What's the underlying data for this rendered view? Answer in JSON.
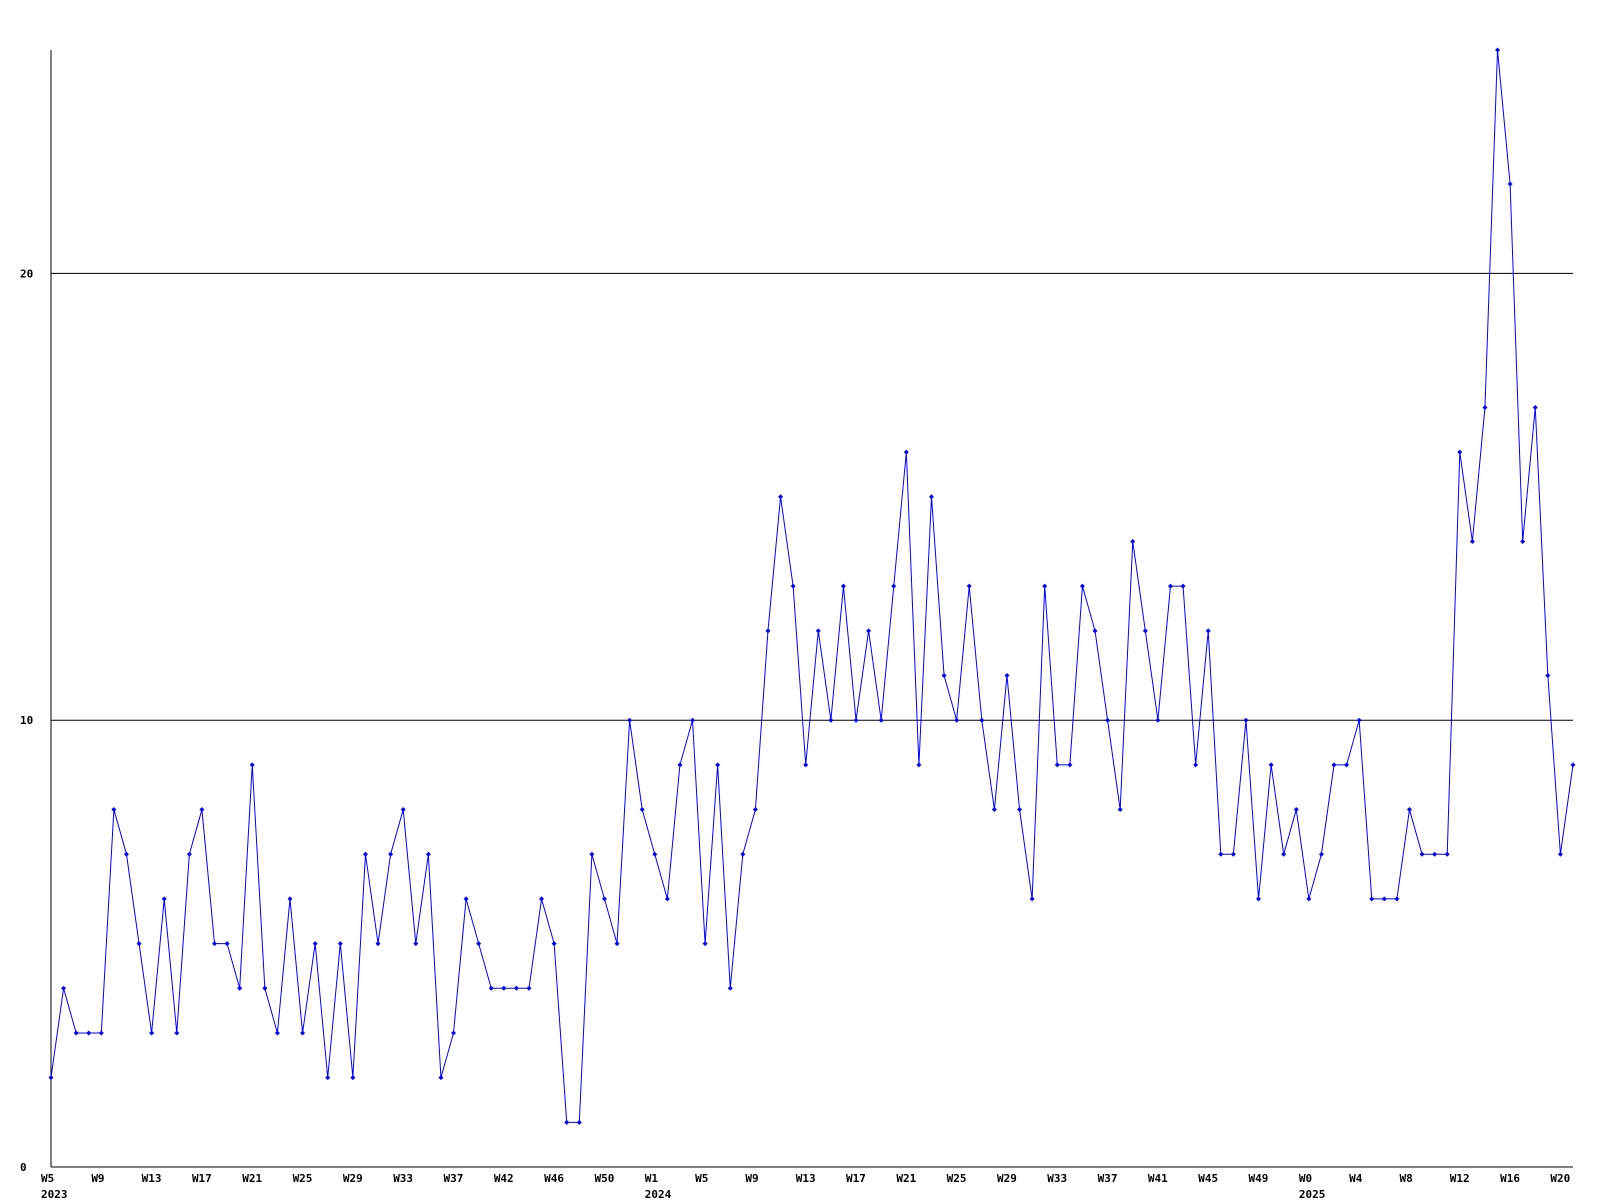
{
  "chart_data": {
    "type": "line",
    "categories": [
      "W5",
      null,
      null,
      null,
      "W9",
      null,
      null,
      null,
      "W13",
      null,
      null,
      null,
      "W17",
      null,
      null,
      null,
      "W21",
      null,
      null,
      null,
      "W25",
      null,
      null,
      null,
      "W29",
      null,
      null,
      null,
      "W33",
      null,
      null,
      null,
      "W37",
      null,
      null,
      null,
      "W42",
      null,
      null,
      null,
      "W46",
      null,
      null,
      null,
      "W50",
      null,
      null,
      null,
      "W1",
      null,
      null,
      null,
      "W5",
      null,
      null,
      null,
      "W9",
      null,
      null,
      null,
      "W13",
      null,
      null,
      null,
      "W17",
      null,
      null,
      null,
      "W21",
      null,
      null,
      null,
      "W25",
      null,
      null,
      null,
      "W29",
      null,
      null,
      null,
      "W33",
      null,
      null,
      null,
      "W37",
      null,
      null,
      null,
      "W41",
      null,
      null,
      null,
      "W45",
      null,
      null,
      null,
      "W49",
      null,
      null,
      null,
      "W0",
      null,
      null,
      null,
      "W4",
      null,
      null,
      null,
      "W8",
      null,
      null,
      null,
      "W12",
      null,
      null,
      null,
      "W16",
      null,
      null,
      null,
      "W20",
      null
    ],
    "years": [
      "2023",
      null,
      null,
      null,
      null,
      null,
      null,
      null,
      null,
      null,
      null,
      null,
      null,
      null,
      null,
      null,
      null,
      null,
      null,
      null,
      null,
      null,
      null,
      null,
      null,
      null,
      null,
      null,
      null,
      null,
      null,
      null,
      null,
      null,
      null,
      null,
      null,
      null,
      null,
      null,
      null,
      null,
      null,
      null,
      null,
      null,
      null,
      null,
      "2024",
      null,
      null,
      null,
      null,
      null,
      null,
      null,
      null,
      null,
      null,
      null,
      null,
      null,
      null,
      null,
      null,
      null,
      null,
      null,
      null,
      null,
      null,
      null,
      null,
      null,
      null,
      null,
      null,
      null,
      null,
      null,
      null,
      null,
      null,
      null,
      null,
      null,
      null,
      null,
      null,
      null,
      null,
      null,
      null,
      null,
      null,
      null,
      null,
      null,
      null,
      null,
      "2025",
      null,
      null,
      null,
      null,
      null,
      null,
      null,
      null,
      null,
      null,
      null,
      null,
      null,
      null,
      null,
      null,
      null,
      null,
      null,
      null,
      null
    ],
    "series": [
      {
        "color": "#0000ff",
        "values": [
          2,
          4,
          3,
          3,
          3,
          8,
          7,
          5,
          3,
          6,
          3,
          7,
          8,
          5,
          5,
          4,
          9,
          4,
          3,
          6,
          3,
          5,
          2,
          5,
          2,
          7,
          5,
          7,
          8,
          5,
          7,
          2,
          3,
          6,
          5,
          4,
          4,
          4,
          4,
          6,
          5,
          1,
          1,
          7,
          6,
          5,
          10,
          8,
          7,
          6,
          9,
          10,
          5,
          9,
          4,
          7,
          8,
          12,
          15,
          13,
          9,
          12,
          10,
          13,
          10,
          12,
          10,
          13,
          16,
          9,
          15,
          11,
          10,
          13,
          10,
          8,
          11,
          8,
          6,
          13,
          9,
          9,
          13,
          12,
          10,
          8,
          14,
          12,
          10,
          13,
          13,
          9,
          12,
          7,
          7,
          10,
          6,
          9,
          7,
          8,
          6,
          7,
          9,
          9,
          10,
          6,
          6,
          6,
          8,
          7,
          7,
          7,
          16,
          14,
          17,
          25,
          22,
          14,
          17,
          11,
          7,
          9
        ]
      }
    ],
    "ylim": [
      0,
      25
    ],
    "yticks": [
      0,
      10,
      20
    ],
    "grid": true
  }
}
